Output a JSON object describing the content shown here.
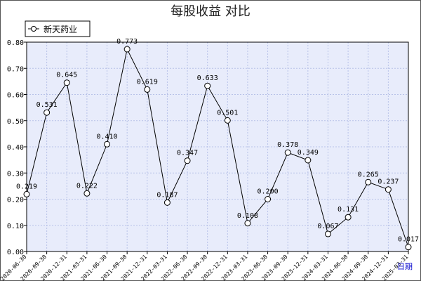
{
  "title": "每股收益  对比",
  "chart_data": {
    "type": "line",
    "title": "每股收益  对比",
    "xlabel": "日期",
    "ylabel": "",
    "ylim": [
      0,
      0.8
    ],
    "yticks": [
      "0.00",
      "0.10",
      "0.20",
      "0.30",
      "0.40",
      "0.50",
      "0.60",
      "0.70",
      "0.80"
    ],
    "grid": true,
    "legend_position": "top-left",
    "categories": [
      "2020-06-30",
      "2020-09-30",
      "2020-12-31",
      "2021-03-31",
      "2021-06-30",
      "2021-09-30",
      "2021-12-31",
      "2022-03-31",
      "2022-06-30",
      "2022-09-30",
      "2022-12-31",
      "2023-03-31",
      "2023-06-30",
      "2023-09-30",
      "2023-12-31",
      "2024-03-31",
      "2024-06-30",
      "2024-09-30",
      "2024-12-31",
      "2025-03-31"
    ],
    "series": [
      {
        "name": "新天药业",
        "color": "#000000",
        "values": [
          0.219,
          0.531,
          0.645,
          0.222,
          0.41,
          0.773,
          0.619,
          0.187,
          0.347,
          0.633,
          0.501,
          0.108,
          0.2,
          0.378,
          0.349,
          0.067,
          0.131,
          0.265,
          0.237,
          0.017
        ],
        "labels": [
          "0.219",
          "0.531",
          "0.645",
          "0.222",
          "0.410",
          "0.773",
          "0.619",
          "0.187",
          "0.347",
          "0.633",
          "0.501",
          "0.108",
          "0.200",
          "0.378",
          "0.349",
          "0.067",
          "0.131",
          "0.265",
          "0.237",
          "0.017"
        ]
      }
    ]
  },
  "colors": {
    "plot_background": "#e8ecfb",
    "grid": "#b8c2e8",
    "line": "#000000",
    "frame": "#555555"
  }
}
